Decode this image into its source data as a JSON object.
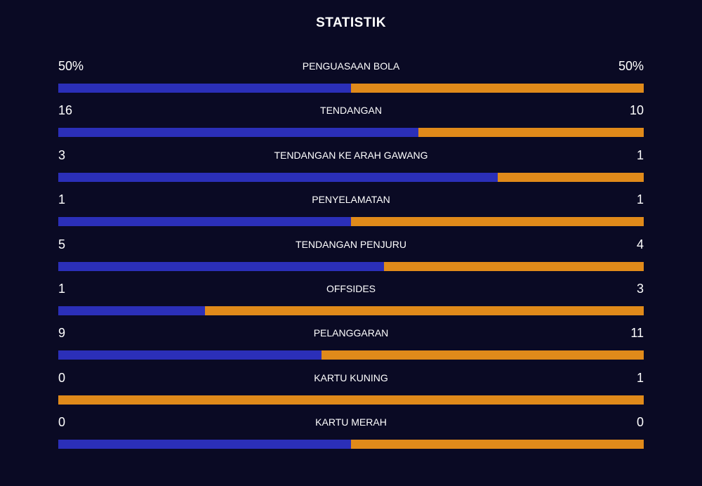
{
  "title": "STATISTIK",
  "colors": {
    "home": "#2b2fb8",
    "away": "#e08a1a",
    "background": "#0a0a24"
  },
  "stats": [
    {
      "label": "PENGUASAAN BOLA",
      "home": "50%",
      "away": "50%",
      "home_share": 0.5
    },
    {
      "label": "TENDANGAN",
      "home": "16",
      "away": "10",
      "home_share": 0.615
    },
    {
      "label": "TENDANGAN KE ARAH GAWANG",
      "home": "3",
      "away": "1",
      "home_share": 0.75
    },
    {
      "label": "PENYELAMATAN",
      "home": "1",
      "away": "1",
      "home_share": 0.5
    },
    {
      "label": "TENDANGAN PENJURU",
      "home": "5",
      "away": "4",
      "home_share": 0.556
    },
    {
      "label": "OFFSIDES",
      "home": "1",
      "away": "3",
      "home_share": 0.25
    },
    {
      "label": "PELANGGARAN",
      "home": "9",
      "away": "11",
      "home_share": 0.45
    },
    {
      "label": "KARTU KUNING",
      "home": "0",
      "away": "1",
      "home_share": 0.0
    },
    {
      "label": "KARTU MERAH",
      "home": "0",
      "away": "0",
      "home_share": 0.5
    }
  ]
}
